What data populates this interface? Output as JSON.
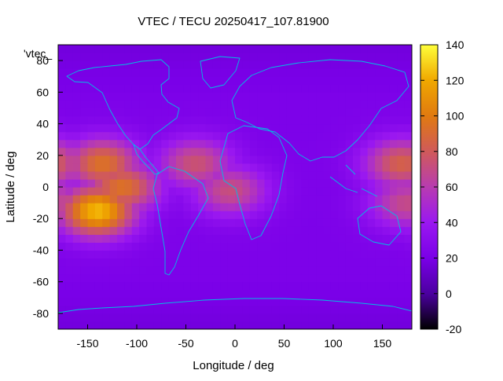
{
  "chart_data": {
    "type": "heatmap",
    "title": "VTEC / TECU 20250417_107.81900",
    "xlabel": "Longitude / deg",
    "ylabel": "Latitude / deg",
    "xlim": [
      -180,
      180
    ],
    "ylim": [
      -90,
      90
    ],
    "x_ticks": [
      "-150",
      "-100",
      "-50",
      "0",
      "50",
      "100",
      "150"
    ],
    "y_ticks": [
      "-80",
      "-60",
      "-40",
      "-20",
      "0",
      "20",
      "40",
      "60",
      "80"
    ],
    "legend_entry": "'vtec_",
    "colorbar": {
      "range": [
        -20,
        140
      ],
      "ticks": [
        "-20",
        "0",
        "20",
        "40",
        "60",
        "80",
        "100",
        "120",
        "140"
      ],
      "palette": [
        "#000000",
        "#4b00a0",
        "#7a00e8",
        "#9a18f0",
        "#b83cb0",
        "#d05a5a",
        "#e07a10",
        "#f0a800",
        "#ffff3a"
      ]
    },
    "features": {
      "background_vtec": 22,
      "peaks": [
        {
          "lon": -140,
          "lat": -15,
          "vtec": 125
        },
        {
          "lon": -135,
          "lat": 15,
          "vtec": 95
        },
        {
          "lon": -115,
          "lat": 0,
          "vtec": 95
        },
        {
          "lon": -40,
          "lat": 15,
          "vtec": 75
        },
        {
          "lon": -5,
          "lat": -2,
          "vtec": 72
        },
        {
          "lon": 170,
          "lat": 15,
          "vtec": 85
        },
        {
          "lon": 175,
          "lat": -10,
          "vtec": 70
        }
      ]
    },
    "coastline_color": "#00c0e0",
    "grid": false
  }
}
